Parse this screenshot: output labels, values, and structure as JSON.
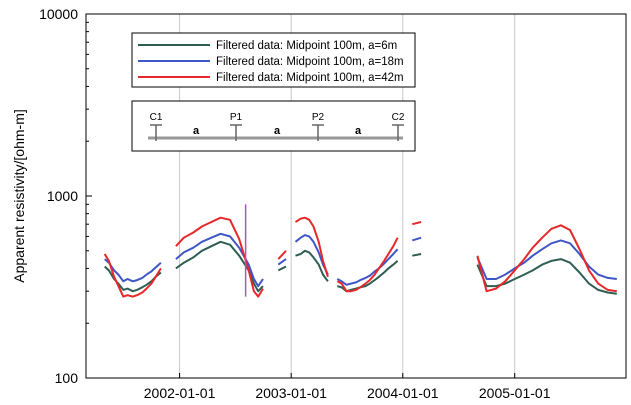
{
  "chart_data": {
    "type": "line",
    "ylabel": "Apparent resistivity/[ohm-m]",
    "xlabel": "",
    "yscale": "log",
    "ylim": [
      100,
      10000
    ],
    "xlim": [
      "2001-03-01",
      "2005-12-31"
    ],
    "grid": "vertical lines at year ticks",
    "y_ticks": [
      "100",
      "1000",
      "10000"
    ],
    "x_ticks": [
      "2002-01-01",
      "2003-01-01",
      "2004-01-01",
      "2005-01-01"
    ],
    "legend_position": "top-left",
    "series": [
      {
        "name": "Filtered data: Midpoint 100m, a=6m",
        "color": "#2e5e52",
        "segments": [
          {
            "x": [
              "2001-05-01",
              "2001-05-15",
              "2001-06-01",
              "2001-06-15",
              "2001-07-01",
              "2001-07-15",
              "2001-08-01",
              "2001-08-15",
              "2001-09-01",
              "2001-09-15",
              "2001-10-01",
              "2001-10-15",
              "2001-11-01"
            ],
            "y": [
              410,
              390,
              350,
              330,
              305,
              310,
              300,
              305,
              315,
              325,
              340,
              360,
              380
            ]
          },
          {
            "x": [
              "2001-12-20",
              "2002-01-15",
              "2002-02-15",
              "2002-03-15",
              "2002-04-15",
              "2002-05-15",
              "2002-06-15",
              "2002-07-15",
              "2002-08-15",
              "2002-09-01",
              "2002-09-15",
              "2002-10-01"
            ],
            "y": [
              400,
              430,
              460,
              500,
              530,
              560,
              540,
              470,
              390,
              330,
              300,
              320
            ]
          },
          {
            "x": [
              "2002-11-20",
              "2002-12-15"
            ],
            "y": [
              390,
              410
            ]
          },
          {
            "x": [
              "2003-01-15",
              "2003-02-01",
              "2003-02-15",
              "2003-03-01",
              "2003-03-15",
              "2003-04-01",
              "2003-04-15",
              "2003-05-01"
            ],
            "y": [
              470,
              480,
              500,
              490,
              460,
              420,
              370,
              340
            ]
          },
          {
            "x": [
              "2003-06-01",
              "2003-06-15",
              "2003-07-01",
              "2003-07-15",
              "2003-08-01",
              "2003-08-15",
              "2003-09-01",
              "2003-09-15",
              "2003-10-01",
              "2003-10-15",
              "2003-11-01",
              "2003-11-15",
              "2003-12-01",
              "2003-12-15"
            ],
            "y": [
              320,
              315,
              300,
              305,
              310,
              315,
              320,
              330,
              345,
              360,
              380,
              400,
              420,
              440
            ]
          },
          {
            "x": [
              "2004-02-01",
              "2004-03-01"
            ],
            "y": [
              470,
              480
            ]
          },
          {
            "x": [
              "2004-09-01",
              "2004-10-01",
              "2004-11-01",
              "2004-12-01",
              "2005-01-01",
              "2005-02-01",
              "2005-03-01",
              "2005-04-01",
              "2005-05-01",
              "2005-06-01",
              "2005-07-01",
              "2005-08-01",
              "2005-09-01",
              "2005-10-01",
              "2005-11-01",
              "2005-12-01"
            ],
            "y": [
              420,
              320,
              320,
              330,
              350,
              370,
              390,
              420,
              440,
              450,
              430,
              380,
              330,
              305,
              295,
              290
            ]
          }
        ]
      },
      {
        "name": "Filtered data: Midpoint 100m, a=18m",
        "color": "#3f56c5",
        "segments": [
          {
            "x": [
              "2001-05-01",
              "2001-05-15",
              "2001-06-01",
              "2001-06-15",
              "2001-07-01",
              "2001-07-15",
              "2001-08-01",
              "2001-08-15",
              "2001-09-01",
              "2001-09-15",
              "2001-10-01",
              "2001-10-15",
              "2001-11-01"
            ],
            "y": [
              450,
              430,
              390,
              370,
              340,
              350,
              340,
              345,
              355,
              370,
              385,
              405,
              430
            ]
          },
          {
            "x": [
              "2001-12-20",
              "2002-01-15",
              "2002-02-15",
              "2002-03-15",
              "2002-04-15",
              "2002-05-15",
              "2002-06-15",
              "2002-07-15",
              "2002-08-15",
              "2002-09-01",
              "2002-09-15",
              "2002-10-01"
            ],
            "y": [
              450,
              490,
              520,
              560,
              590,
              620,
              600,
              520,
              420,
              350,
              320,
              350
            ]
          },
          {
            "x": [
              "2002-11-20",
              "2002-12-15"
            ],
            "y": [
              420,
              450
            ]
          },
          {
            "x": [
              "2003-01-15",
              "2003-02-01",
              "2003-02-15",
              "2003-03-01",
              "2003-03-15",
              "2003-04-01",
              "2003-04-15",
              "2003-05-01"
            ],
            "y": [
              560,
              590,
              610,
              600,
              560,
              490,
              420,
              370
            ]
          },
          {
            "x": [
              "2003-06-01",
              "2003-06-15",
              "2003-07-01",
              "2003-07-15",
              "2003-08-01",
              "2003-08-15",
              "2003-09-01",
              "2003-09-15",
              "2003-10-01",
              "2003-10-15",
              "2003-11-01",
              "2003-11-15",
              "2003-12-01",
              "2003-12-15"
            ],
            "y": [
              350,
              340,
              325,
              330,
              335,
              345,
              355,
              365,
              385,
              400,
              425,
              450,
              480,
              510
            ]
          },
          {
            "x": [
              "2004-02-01",
              "2004-03-01"
            ],
            "y": [
              570,
              590
            ]
          },
          {
            "x": [
              "2004-09-01",
              "2004-10-01",
              "2004-11-01",
              "2004-12-01",
              "2005-01-01",
              "2005-02-01",
              "2005-03-01",
              "2005-04-01",
              "2005-05-01",
              "2005-06-01",
              "2005-07-01",
              "2005-08-01",
              "2005-09-01",
              "2005-10-01",
              "2005-11-01",
              "2005-12-01"
            ],
            "y": [
              460,
              350,
              350,
              370,
              400,
              430,
              470,
              510,
              550,
              570,
              550,
              480,
              410,
              370,
              355,
              350
            ]
          }
        ]
      },
      {
        "name": "Filtered data: Midpoint 100m, a=42m",
        "color": "#e8272a",
        "segments": [
          {
            "x": [
              "2001-05-01",
              "2001-05-15",
              "2001-06-01",
              "2001-06-15",
              "2001-07-01",
              "2001-07-15",
              "2001-08-01",
              "2001-08-15",
              "2001-09-01",
              "2001-09-15",
              "2001-10-01",
              "2001-10-15",
              "2001-11-01"
            ],
            "y": [
              480,
              440,
              360,
              320,
              280,
              285,
              280,
              285,
              295,
              310,
              330,
              360,
              400
            ]
          },
          {
            "x": [
              "2001-12-20",
              "2002-01-15",
              "2002-02-15",
              "2002-03-15",
              "2002-04-15",
              "2002-05-15",
              "2002-06-15",
              "2002-07-15",
              "2002-08-15",
              "2002-09-01",
              "2002-09-15",
              "2002-10-01"
            ],
            "y": [
              530,
              590,
              630,
              680,
              720,
              760,
              740,
              580,
              390,
              300,
              280,
              310
            ]
          },
          {
            "x": [
              "2002-11-20",
              "2002-12-15"
            ],
            "y": [
              450,
              500
            ]
          },
          {
            "x": [
              "2003-01-15",
              "2003-02-01",
              "2003-02-15",
              "2003-03-01",
              "2003-03-15",
              "2003-04-01",
              "2003-04-15",
              "2003-05-01"
            ],
            "y": [
              720,
              750,
              760,
              740,
              680,
              560,
              440,
              360
            ]
          },
          {
            "x": [
              "2003-06-01",
              "2003-06-15",
              "2003-07-01",
              "2003-07-15",
              "2003-08-01",
              "2003-08-15",
              "2003-09-01",
              "2003-09-15",
              "2003-10-01",
              "2003-10-15",
              "2003-11-01",
              "2003-11-15",
              "2003-12-01",
              "2003-12-15"
            ],
            "y": [
              340,
              330,
              300,
              300,
              305,
              315,
              330,
              345,
              370,
              400,
              440,
              480,
              530,
              590
            ]
          },
          {
            "x": [
              "2004-02-01",
              "2004-03-01"
            ],
            "y": [
              700,
              720
            ]
          },
          {
            "x": [
              "2004-09-01",
              "2004-10-01",
              "2004-11-01",
              "2004-12-01",
              "2005-01-01",
              "2005-02-01",
              "2005-03-01",
              "2005-04-01",
              "2005-05-01",
              "2005-06-01",
              "2005-07-01",
              "2005-08-01",
              "2005-09-01",
              "2005-10-01",
              "2005-11-01",
              "2005-12-01"
            ],
            "y": [
              470,
              300,
              310,
              340,
              390,
              450,
              520,
              590,
              660,
              690,
              650,
              510,
              390,
              330,
              305,
              300
            ]
          }
        ]
      }
    ],
    "spike": {
      "x": "2002-08-05",
      "y_from": 280,
      "y_to": 900,
      "color": "#b04fc7"
    },
    "electrode_diagram": {
      "electrodes": [
        "C1",
        "P1",
        "P2",
        "C2"
      ],
      "spacing_label": "a"
    }
  }
}
